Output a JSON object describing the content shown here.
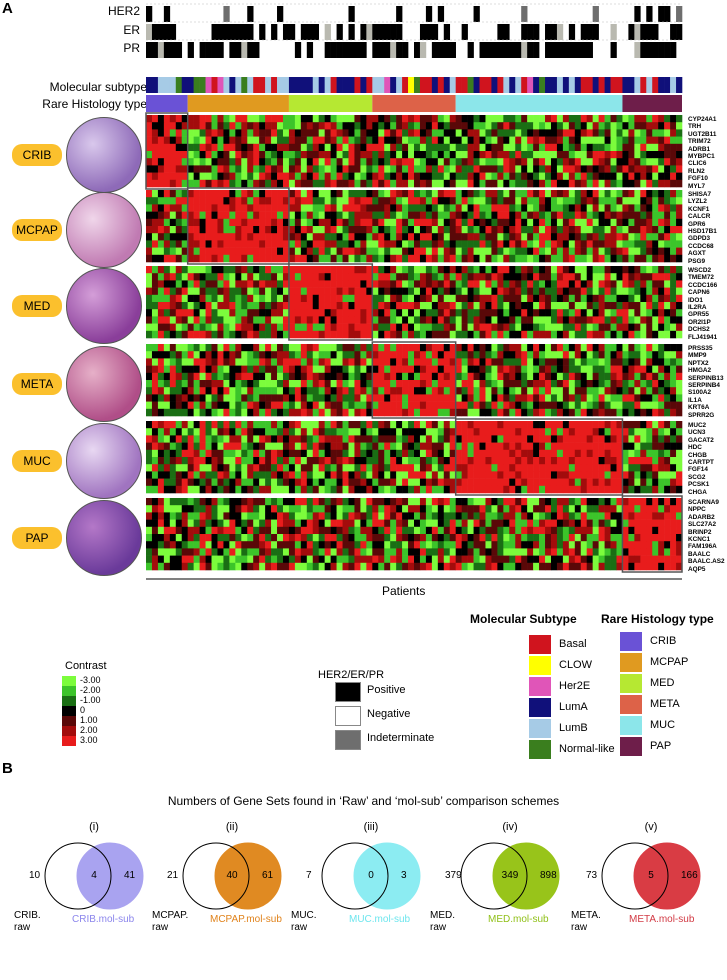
{
  "panel_a": {
    "letter": "A",
    "status_rows": [
      "HER2",
      "ER",
      "PR"
    ],
    "subtype_row_label": "Molecular subtype",
    "histology_row_label": "Rare Histology type",
    "x_axis_label": "Patients",
    "histology_groups": [
      {
        "tag": "CRIB",
        "genes": [
          "CYP24A1",
          "TRH",
          "UGT2B11",
          "TRIM72",
          "ADRB1",
          "MYBPC1",
          "CLIC6",
          "RLN2",
          "FGF10",
          "MYL7"
        ]
      },
      {
        "tag": "MCPAP",
        "genes": [
          "SHISA7",
          "LYZL2",
          "KCNF1",
          "CALCR",
          "GPR6",
          "HSD17B1",
          "GDPD3",
          "CCDC68",
          "AGXT",
          "PSG9"
        ]
      },
      {
        "tag": "MED",
        "genes": [
          "WSCD2",
          "TMEM72",
          "CCDC166",
          "CAPN6",
          "IDO1",
          "IL2RA",
          "GPR55",
          "OR2I1P",
          "DCHS2",
          "FLJ41941"
        ]
      },
      {
        "tag": "META",
        "genes": [
          "PRSS35",
          "MMP9",
          "NPTX2",
          "HMGA2",
          "SERPINB13",
          "SERPINB4",
          "S100A2",
          "IL1A",
          "KRT6A",
          "SPRR2G"
        ]
      },
      {
        "tag": "MUC",
        "genes": [
          "MUC2",
          "UCN3",
          "GACAT2",
          "HDC",
          "CHGB",
          "CARTPT",
          "FGF14",
          "SCG2",
          "PCSK1",
          "CHGA"
        ]
      },
      {
        "tag": "PAP",
        "genes": [
          "SCARNA9",
          "NPPC",
          "ADARB2",
          "SLC27A2",
          "BRINP2",
          "KCNC1",
          "FAM196A",
          "BAALC",
          "BAALC.AS2",
          "AQP5"
        ]
      }
    ],
    "contrast_legend": {
      "title": "Contrast",
      "levels": [
        "-3.00",
        "-2.00",
        "-1.00",
        "0",
        "1.00",
        "2.00",
        "3.00"
      ],
      "colors": [
        "#7cfc3c",
        "#3cc42a",
        "#1a6e14",
        "#000000",
        "#5a0808",
        "#a30c0c",
        "#e81c1c"
      ]
    },
    "status_legend": {
      "title": "HER2/ER/PR",
      "items": [
        {
          "label": "Positive",
          "color": "#000000"
        },
        {
          "label": "Negative",
          "color": "#ffffff"
        },
        {
          "label": "Indeterminate",
          "color": "#6e6e6e"
        }
      ]
    },
    "subtype_legend": {
      "title": "Molecular Subtype",
      "items": [
        {
          "label": "Basal",
          "color": "#d0141e"
        },
        {
          "label": "CLOW",
          "color": "#ffff00"
        },
        {
          "label": "Her2E",
          "color": "#e055b8"
        },
        {
          "label": "LumA",
          "color": "#10107a"
        },
        {
          "label": "LumB",
          "color": "#a6cbe6"
        },
        {
          "label": "Normal-like",
          "color": "#3a7e1e"
        }
      ]
    },
    "histology_legend": {
      "title": "Rare Histology type",
      "items": [
        {
          "label": "CRIB",
          "color": "#6a52d6"
        },
        {
          "label": "MCPAP",
          "color": "#e09a20"
        },
        {
          "label": "MED",
          "color": "#b6e832"
        },
        {
          "label": "META",
          "color": "#dd6248"
        },
        {
          "label": "MUC",
          "color": "#8ce6ea"
        },
        {
          "label": "PAP",
          "color": "#6e1e4a"
        }
      ]
    }
  },
  "panel_b": {
    "letter": "B",
    "title": "Numbers of Gene Sets found in ‘Raw’ and ‘mol-sub’ comparison schemes",
    "venns": [
      {
        "roman": "(i)",
        "left": "10",
        "both": "4",
        "right": "41",
        "raw_label": "CRIB.\nraw",
        "mol_label": "CRIB.mol-sub",
        "color": "#a9a3f0",
        "text_color": "#8c86ec"
      },
      {
        "roman": "(ii)",
        "left": "21",
        "both": "40",
        "right": "61",
        "raw_label": "MCPAP.\nraw",
        "mol_label": "MCPAP.mol-sub",
        "color": "#e08a22",
        "text_color": "#e0821a"
      },
      {
        "roman": "(iii)",
        "left": "7",
        "both": "0",
        "right": "3",
        "raw_label": "MUC.\nraw",
        "mol_label": "MUC.mol-sub",
        "color": "#8cecf2",
        "text_color": "#6ee6ee"
      },
      {
        "roman": "(iv)",
        "left": "379",
        "both": "349",
        "right": "898",
        "raw_label": "MED.\nraw",
        "mol_label": "MED.mol-sub",
        "color": "#98c41a",
        "text_color": "#90c018"
      },
      {
        "roman": "(v)",
        "left": "73",
        "both": "5",
        "right": "166",
        "raw_label": "META.\nraw",
        "mol_label": "META.mol-sub",
        "color": "#d93c44",
        "text_color": "#d23a44"
      }
    ]
  }
}
